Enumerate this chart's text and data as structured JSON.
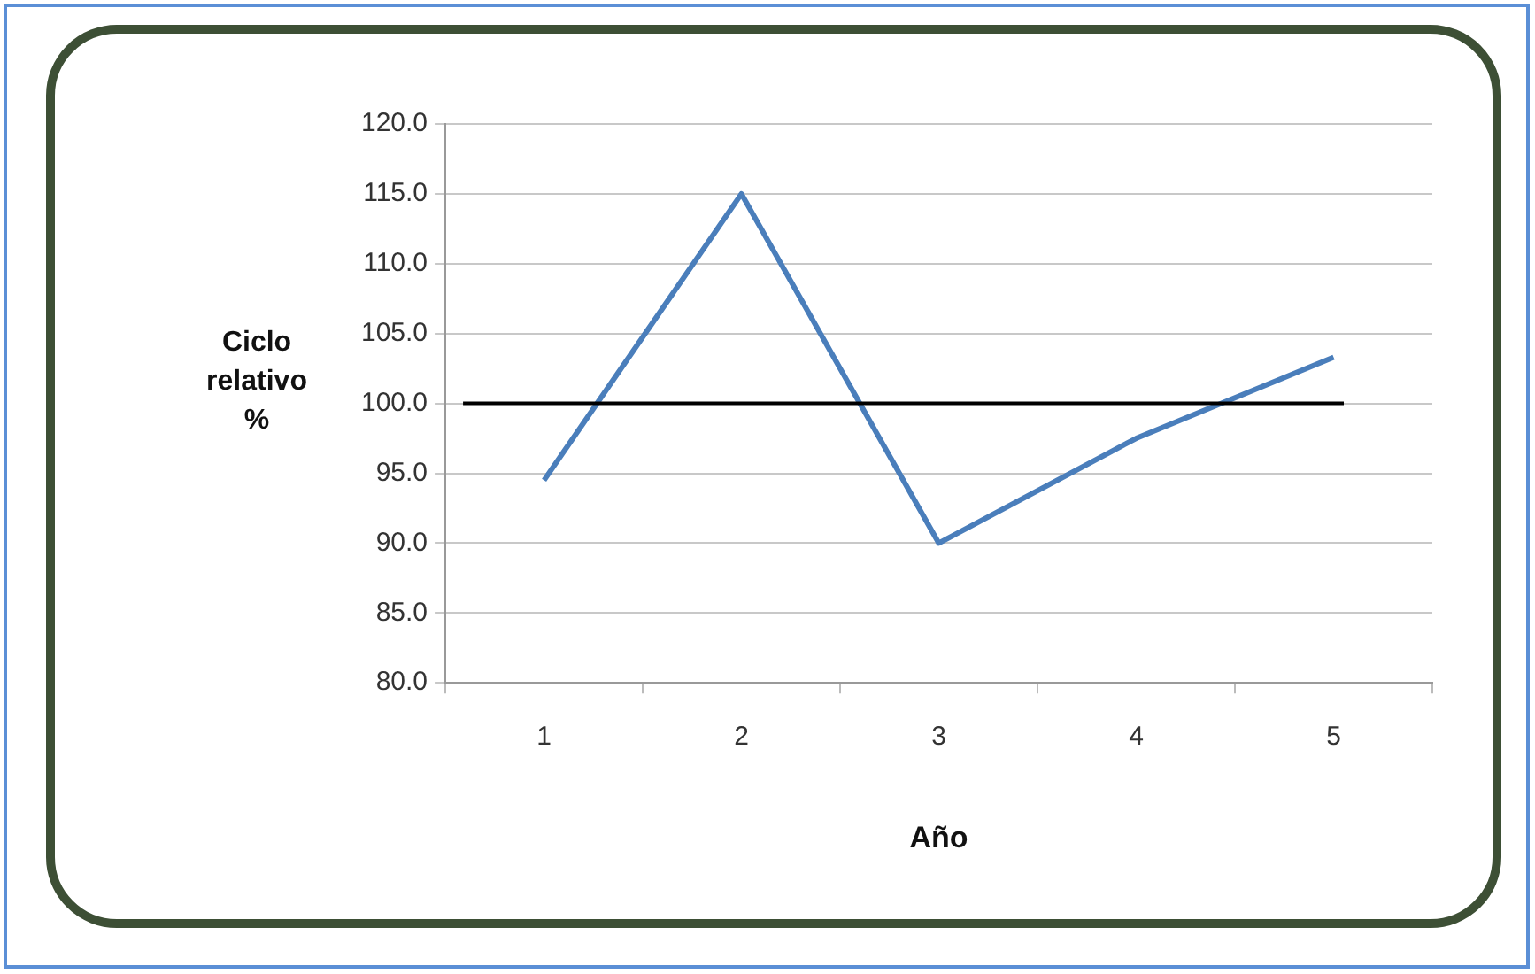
{
  "chart_data": {
    "type": "line",
    "xlabel": "Año",
    "ylabel": "Ciclo relativo %",
    "categories": [
      "1",
      "2",
      "3",
      "4",
      "5"
    ],
    "series": [
      {
        "color": "#4a7ebb",
        "values": [
          94.5,
          115.0,
          90.0,
          97.5,
          103.3
        ]
      }
    ],
    "ylim": [
      80,
      120
    ],
    "yticks": [
      {
        "value": 80,
        "label": "80.0"
      },
      {
        "value": 85,
        "label": "85.0"
      },
      {
        "value": 90,
        "label": "90.0"
      },
      {
        "value": 95,
        "label": "95.0"
      },
      {
        "value": 100,
        "label": "100.0"
      },
      {
        "value": 105,
        "label": "105.0"
      },
      {
        "value": 110,
        "label": "110.0"
      },
      {
        "value": 115,
        "label": "115.0"
      },
      {
        "value": 120,
        "label": "120.0"
      }
    ],
    "ref_lines": [
      {
        "axis": "y",
        "value": 100,
        "color": "#000000"
      }
    ],
    "grid": "y",
    "legend": false,
    "marker": "none",
    "line_style": "solid"
  }
}
